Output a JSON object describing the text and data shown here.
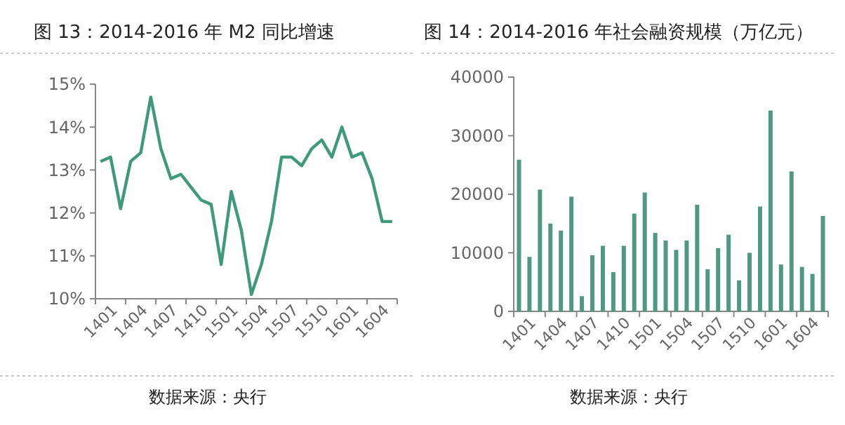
{
  "chart_data": [
    {
      "type": "line",
      "title": "图 13：2014-2016 年 M2 同比增速",
      "categories": [
        "1401",
        null,
        null,
        "1404",
        null,
        null,
        "1407",
        null,
        null,
        "1410",
        null,
        null,
        "1501",
        null,
        null,
        "1504",
        null,
        null,
        "1507",
        null,
        null,
        "1510",
        null,
        null,
        "1601",
        null,
        null,
        "1604",
        null,
        null
      ],
      "series": [
        {
          "color": "#3f9a7c",
          "values": [
            13.2,
            13.3,
            12.1,
            13.2,
            13.4,
            14.7,
            13.5,
            12.8,
            12.9,
            12.6,
            12.3,
            12.2,
            10.8,
            12.5,
            11.6,
            10.1,
            10.8,
            11.8,
            13.3,
            13.3,
            13.1,
            13.5,
            13.7,
            13.3,
            14.0,
            13.3,
            13.4,
            12.8,
            11.8,
            11.8
          ]
        }
      ],
      "ylim": [
        10,
        15
      ],
      "yticks": [
        {
          "value": 10,
          "label": "10%"
        },
        {
          "value": 11,
          "label": "11%"
        },
        {
          "value": 12,
          "label": "12%"
        },
        {
          "value": 13,
          "label": "13%"
        },
        {
          "value": 14,
          "label": "14%"
        },
        {
          "value": 15,
          "label": "15%"
        }
      ],
      "grid": false,
      "marker": "none",
      "line_style": "solid",
      "annotations": [
        "数据来源：央行"
      ]
    },
    {
      "type": "bar",
      "title": "图 14：2014-2016 年社会融资规模（万亿元）",
      "categories": [
        "1401",
        null,
        null,
        "1404",
        null,
        null,
        "1407",
        null,
        null,
        "1410",
        null,
        null,
        "1501",
        null,
        null,
        "1504",
        null,
        null,
        "1507",
        null,
        null,
        "1510",
        null,
        null,
        "1601",
        null,
        null,
        "1604",
        null,
        null
      ],
      "series": [
        {
          "color": "#4f9882",
          "values": [
            25900,
            9300,
            20800,
            15000,
            13800,
            19600,
            2600,
            9600,
            11200,
            6700,
            11200,
            16700,
            20300,
            13400,
            12100,
            10500,
            12100,
            18200,
            7200,
            10800,
            13100,
            5300,
            10000,
            17900,
            34300,
            8000,
            23900,
            7600,
            6400,
            16300
          ]
        }
      ],
      "ylim": [
        0,
        40000
      ],
      "yticks": [
        0,
        10000,
        20000,
        30000,
        40000
      ],
      "grid": false,
      "annotations": [
        "数据来源：央行"
      ]
    }
  ]
}
